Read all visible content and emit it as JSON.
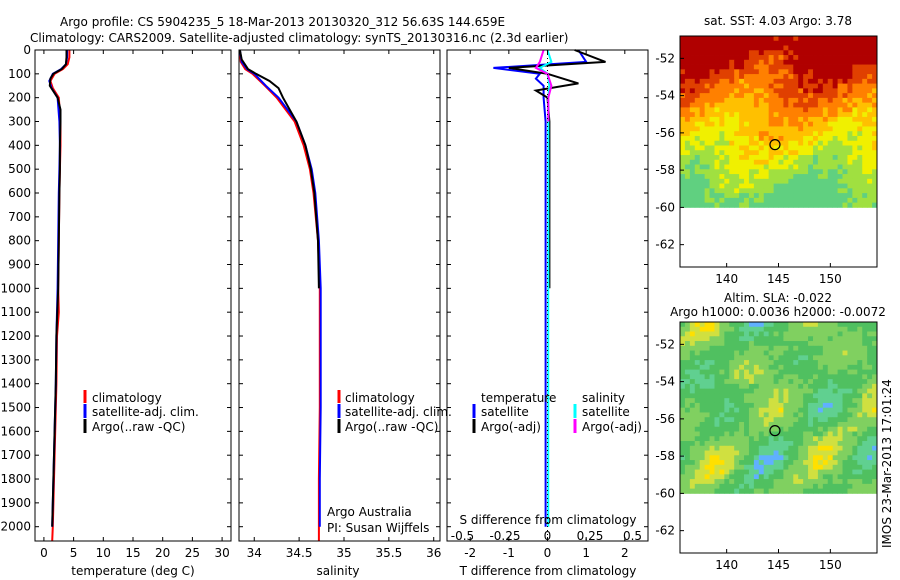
{
  "header": {
    "title_line1": "Argo profile: CS 5904235_5 18-Mar-2013 20130320_312 56.63S 144.659E",
    "title_line2": "Climatology: CARS2009. Satellite-adjusted climatology: synTS_20130316.nc (2.3d earlier)"
  },
  "colors": {
    "climatology": "#ff0000",
    "satellite_adj": "#0000ff",
    "argo": "#000000",
    "salinity_satellite": "#00ffff",
    "salinity_argo": "#ff00ff"
  },
  "legend_main": [
    "climatology",
    "satellite-adj. clim.",
    "Argo(..raw -QC)"
  ],
  "diff_legend": {
    "temperature_header": "temperature",
    "salinity_header": "salinity",
    "satellite": "satellite",
    "argo_adj": "Argo(-adj)"
  },
  "credits": {
    "line1": "Argo Australia",
    "line2": "PI: Susan Wijffels"
  },
  "map_panels": {
    "sst_title": "sat. SST: 4.03 Argo: 3.78",
    "sla_title1": "Altim. SLA: -0.022",
    "sla_title2": "Argo h1000: 0.0036 h2000: -0.0072"
  },
  "side_stamp": "IMOS 23-Mar-2013 17:01:24",
  "chart_data": [
    {
      "type": "line",
      "name": "temperature profile",
      "xlabel": "temperature (deg C)",
      "xticks": [
        "0",
        "5",
        "10",
        "15",
        "20",
        "25",
        "30"
      ],
      "xlim": [
        -1.5,
        31.5
      ],
      "yticks": [
        "0",
        "100",
        "200",
        "300",
        "400",
        "500",
        "600",
        "700",
        "800",
        "900",
        "1000",
        "1100",
        "1200",
        "1300",
        "1400",
        "1500",
        "1600",
        "1700",
        "1800",
        "1900",
        "2000"
      ],
      "ylim": [
        2060,
        0
      ],
      "series": [
        {
          "name": "climatology",
          "color": "#ff0000",
          "depth": [
            0,
            30,
            60,
            80,
            100,
            130,
            160,
            200,
            300,
            400,
            500,
            600,
            800,
            1000,
            1100,
            1200,
            1400,
            1600,
            1800,
            2000,
            2060
          ],
          "values": [
            4.3,
            4.3,
            4.0,
            3.2,
            1.8,
            1.1,
            1.5,
            2.5,
            2.8,
            2.8,
            2.7,
            2.6,
            2.5,
            2.4,
            2.5,
            2.2,
            2.1,
            1.9,
            1.7,
            1.5,
            1.4
          ]
        },
        {
          "name": "satellite-adj. clim.",
          "color": "#0000ff",
          "depth": [
            0,
            30,
            60,
            80,
            100,
            130,
            160,
            200,
            300,
            400,
            500,
            600,
            800,
            1000,
            1200,
            1400,
            1600,
            1800,
            2000
          ],
          "values": [
            3.9,
            3.9,
            3.7,
            2.9,
            1.5,
            0.9,
            1.3,
            2.3,
            2.6,
            2.7,
            2.6,
            2.5,
            2.4,
            2.3,
            2.1,
            2.0,
            1.8,
            1.6,
            1.4
          ]
        },
        {
          "name": "Argo(..raw -QC)",
          "color": "#000000",
          "depth": [
            0,
            30,
            60,
            80,
            100,
            120,
            150,
            200,
            250,
            300,
            400,
            500,
            600,
            800,
            1000,
            1200,
            1400,
            1600,
            1800,
            2000
          ],
          "values": [
            3.8,
            3.8,
            3.7,
            3.0,
            1.6,
            1.1,
            1.0,
            2.3,
            2.8,
            2.8,
            2.7,
            2.7,
            2.6,
            2.5,
            2.4,
            2.1,
            2.0,
            1.8,
            1.6,
            1.4
          ]
        }
      ]
    },
    {
      "type": "line",
      "name": "salinity profile",
      "xlabel": "salinity",
      "xticks": [
        "34",
        "34.5",
        "35",
        "35.5",
        "36"
      ],
      "xlim": [
        33.83,
        36.07
      ],
      "series": [
        {
          "name": "climatology",
          "color": "#ff0000",
          "depth": [
            0,
            50,
            80,
            100,
            150,
            200,
            300,
            400,
            500,
            600,
            800,
            1000,
            1200,
            1500,
            1800,
            2000,
            2060
          ],
          "values": [
            33.84,
            33.85,
            33.9,
            33.98,
            34.12,
            34.25,
            34.45,
            34.55,
            34.62,
            34.66,
            34.71,
            34.73,
            34.73,
            34.73,
            34.72,
            34.72,
            34.72
          ]
        },
        {
          "name": "satellite-adj. clim.",
          "color": "#0000ff",
          "depth": [
            0,
            50,
            80,
            100,
            150,
            200,
            300,
            400,
            500,
            600,
            800,
            1000,
            1200,
            1500,
            1800,
            2000
          ],
          "values": [
            33.84,
            33.86,
            33.92,
            34.0,
            34.13,
            34.27,
            34.47,
            34.57,
            34.64,
            34.68,
            34.72,
            34.74,
            34.74,
            34.74,
            34.73,
            34.73
          ]
        },
        {
          "name": "Argo(..raw -QC)",
          "color": "#000000",
          "depth": [
            0,
            40,
            80,
            100,
            130,
            160,
            200,
            300,
            400,
            500,
            600,
            800,
            1000
          ],
          "values": [
            33.84,
            33.86,
            33.93,
            34.02,
            34.17,
            34.27,
            34.32,
            34.47,
            34.57,
            34.63,
            34.67,
            34.71,
            34.72
          ]
        }
      ]
    },
    {
      "type": "line",
      "name": "difference from climatology",
      "xlabel": "T difference from climatology",
      "xticks": [
        "-2",
        "-1",
        "0",
        "1",
        "2"
      ],
      "xlim": [
        -2.6,
        2.6
      ],
      "top_label": "S difference from climatology",
      "top_ticks": [
        "-0.5",
        "-0.25",
        "0",
        "0.25",
        "0.5"
      ],
      "series": [
        {
          "name": "temperature satellite",
          "color": "#0000ff",
          "depth": [
            0,
            50,
            75,
            100,
            120,
            150,
            200,
            300,
            400,
            600,
            1000,
            2000
          ],
          "values": [
            0.8,
            1.0,
            -1.4,
            -0.2,
            -0.3,
            -0.1,
            -0.1,
            -0.05,
            -0.05,
            -0.05,
            -0.05,
            -0.05
          ]
        },
        {
          "name": "temperature Argo(-adj)",
          "color": "#000000",
          "depth": [
            0,
            50,
            75,
            100,
            140,
            170,
            200,
            300,
            400,
            600,
            1000
          ],
          "values": [
            0.7,
            1.5,
            -1.0,
            0.0,
            0.8,
            -0.3,
            0.0,
            0.05,
            0.05,
            0.05,
            0.05
          ]
        },
        {
          "name": "salinity satellite",
          "color": "#00ffff",
          "depth": [
            0,
            50,
            75,
            100,
            150,
            200,
            300,
            400,
            600,
            1000,
            2000
          ],
          "values": [
            0.0,
            0.1,
            -0.2,
            0.0,
            0.05,
            0.02,
            0.02,
            0.02,
            0.02,
            0.02,
            0.02
          ]
        },
        {
          "name": "salinity Argo(-adj)",
          "color": "#ff00ff",
          "depth": [
            0,
            50,
            75,
            100,
            150,
            200,
            300
          ],
          "values": [
            -0.1,
            -0.2,
            -0.3,
            0.0,
            0.1,
            0.02,
            0.02
          ]
        }
      ]
    },
    {
      "type": "heatmap",
      "name": "sat. SST map",
      "xticks": [
        "140",
        "145",
        "150"
      ],
      "yticks": [
        "-52",
        "-54",
        "-56",
        "-58",
        "-60",
        "-62"
      ],
      "xlim": [
        135.5,
        154.5
      ],
      "ylim": [
        -63.2,
        -50.8
      ],
      "data_south_limit": -60,
      "argo_position": [
        144.659,
        -56.63
      ]
    },
    {
      "type": "heatmap",
      "name": "Altim. SLA map",
      "xticks": [
        "140",
        "145",
        "150"
      ],
      "yticks": [
        "-52",
        "-54",
        "-56",
        "-58",
        "-60",
        "-62"
      ],
      "xlim": [
        135.5,
        154.5
      ],
      "ylim": [
        -63.2,
        -50.8
      ],
      "data_south_limit": -60,
      "argo_position": [
        144.659,
        -56.63
      ]
    }
  ]
}
